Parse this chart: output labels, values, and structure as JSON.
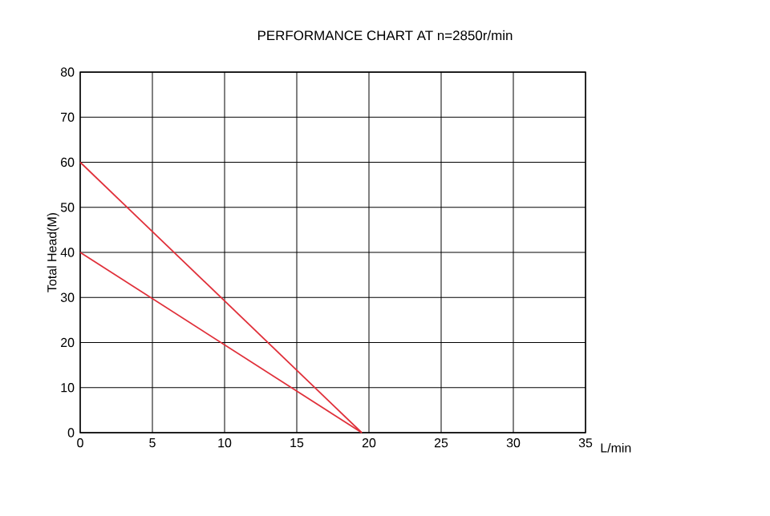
{
  "chart_data": {
    "type": "line",
    "title": "PERFORMANCE CHART AT n=2850r/min",
    "xlabel": "L/min",
    "ylabel": "Total Head(M)",
    "xlim": [
      0,
      35
    ],
    "xticks": [
      0,
      5,
      10,
      15,
      20,
      25,
      30,
      35
    ],
    "ylim": [
      0,
      80
    ],
    "yticks": [
      0,
      10,
      20,
      30,
      40,
      50,
      60,
      70,
      80
    ],
    "grid": true,
    "x": [
      0,
      19.5
    ],
    "marker": "none",
    "line_style": "solid",
    "series": [
      {
        "color": "#e0303a",
        "values": [
          60,
          0
        ]
      },
      {
        "color": "#e0303a",
        "values": [
          40,
          0
        ]
      }
    ]
  }
}
